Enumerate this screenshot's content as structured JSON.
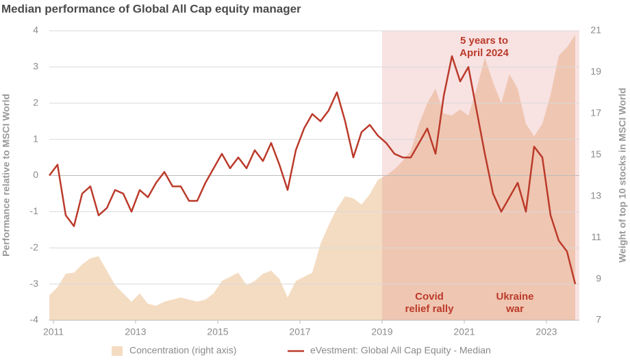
{
  "chart_data": {
    "type": "line",
    "title": "Median performance of Global All Cap equity manager",
    "ylabel": "Performance relative to MSCI World",
    "y2label": "Weight of top 10 stocks in MSCI World",
    "x": [
      2010.9,
      2011.1,
      2011.3,
      2011.5,
      2011.7,
      2011.9,
      2012.1,
      2012.3,
      2012.5,
      2012.7,
      2012.9,
      2013.1,
      2013.3,
      2013.5,
      2013.7,
      2013.9,
      2014.1,
      2014.3,
      2014.5,
      2014.7,
      2014.9,
      2015.1,
      2015.3,
      2015.5,
      2015.7,
      2015.9,
      2016.1,
      2016.3,
      2016.5,
      2016.7,
      2016.9,
      2017.1,
      2017.3,
      2017.5,
      2017.7,
      2017.9,
      2018.1,
      2018.3,
      2018.5,
      2018.7,
      2018.9,
      2019.1,
      2019.3,
      2019.5,
      2019.7,
      2019.9,
      2020.1,
      2020.3,
      2020.5,
      2020.7,
      2020.9,
      2021.1,
      2021.3,
      2021.5,
      2021.7,
      2021.9,
      2022.1,
      2022.3,
      2022.5,
      2022.7,
      2022.9,
      2023.1,
      2023.3,
      2023.5,
      2023.7
    ],
    "xlim": [
      2010.9,
      2023.8
    ],
    "xticks": [
      2011,
      2013,
      2015,
      2017,
      2019,
      2021,
      2023
    ],
    "ylim": [
      -4,
      4
    ],
    "yticks": [
      -4,
      -3,
      -2,
      -1,
      0,
      1,
      2,
      3,
      4
    ],
    "y2lim": [
      7,
      21
    ],
    "y2ticks": [
      7,
      9,
      11,
      13,
      15,
      17,
      19,
      21
    ],
    "grid": true,
    "shaded_range": [
      2019,
      2023.8
    ],
    "series": [
      {
        "name": "Concentration (right axis)",
        "type": "area",
        "axis": "y2",
        "color": "#f4dcc2",
        "values": [
          8.2,
          8.6,
          9.25,
          9.3,
          9.7,
          10.0,
          10.1,
          9.4,
          8.7,
          8.3,
          7.9,
          8.3,
          7.8,
          7.7,
          7.9,
          8.0,
          8.1,
          8.0,
          7.9,
          8.0,
          8.3,
          8.9,
          9.1,
          9.3,
          8.7,
          8.9,
          9.25,
          9.4,
          9.0,
          8.1,
          8.9,
          9.1,
          9.3,
          10.7,
          11.6,
          12.4,
          13.0,
          12.9,
          12.6,
          13.1,
          13.8,
          14.0,
          14.3,
          14.7,
          15.2,
          16.5,
          17.5,
          18.2,
          17.0,
          16.9,
          17.2,
          16.9,
          18.2,
          19.7,
          18.5,
          17.5,
          18.9,
          18.2,
          16.5,
          15.9,
          16.5,
          17.9,
          19.8,
          20.2,
          20.8
        ]
      },
      {
        "name": "eVestment: Global All Cap Equity - Median",
        "type": "line",
        "color": "#bb3a2a",
        "values": [
          0,
          0.3,
          -1.1,
          -1.4,
          -0.5,
          -0.3,
          -1.1,
          -0.9,
          -0.4,
          -0.5,
          -1.0,
          -0.4,
          -0.6,
          -0.2,
          0.1,
          -0.3,
          -0.3,
          -0.7,
          -0.7,
          -0.2,
          0.2,
          0.6,
          0.2,
          0.5,
          0.2,
          0.7,
          0.4,
          0.9,
          0.3,
          -0.4,
          0.7,
          1.3,
          1.7,
          1.5,
          1.8,
          2.3,
          1.5,
          0.5,
          1.2,
          1.4,
          1.1,
          0.9,
          0.6,
          0.5,
          0.5,
          0.9,
          1.3,
          0.6,
          2.2,
          3.3,
          2.6,
          3.0,
          1.8,
          0.6,
          -0.5,
          -1.0,
          -0.6,
          -0.2,
          -1.0,
          0.8,
          0.5,
          -1.1,
          -1.8,
          -2.1,
          -3.0
        ]
      }
    ],
    "annotations": [
      [
        "5 years to",
        "April 2024"
      ],
      [
        "Covid",
        "relief rally"
      ],
      [
        "Ukraine",
        "war"
      ]
    ]
  }
}
